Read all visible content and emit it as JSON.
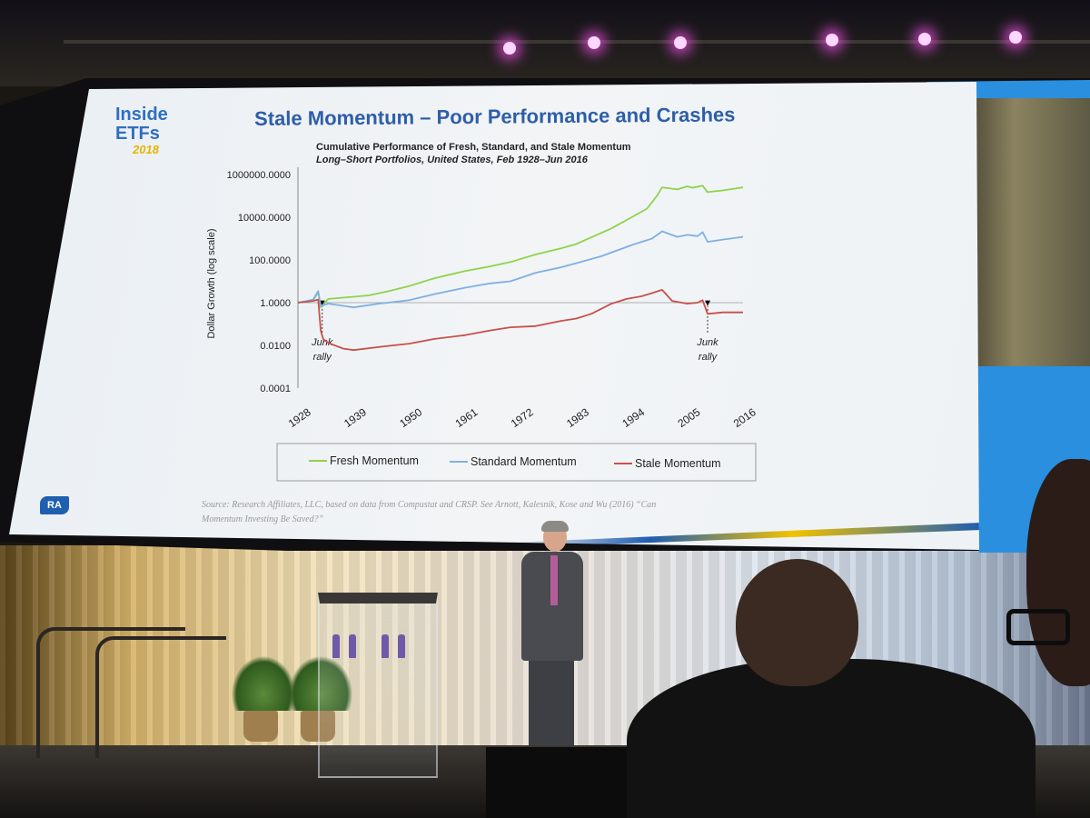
{
  "slide": {
    "logo_line1": "Inside",
    "logo_line2": "ETFs",
    "logo_year": "2018",
    "title": "Stale Momentum – Poor Performance and Crashes",
    "source_line1": "Source: Research Affiliates, LLC, based on data from Compustat and CRSP. See Arnott, Kalesnik, Kose and Wu (2016) “Can",
    "source_line2": "Momentum Investing Be Saved?”",
    "brand_mark": "RA"
  },
  "colors": {
    "title_blue": "#2e5ea9",
    "logo_blue": "#2e6fc3",
    "logo_gold": "#e7b400",
    "fresh": "#8ed34a",
    "standard": "#7fb0e3",
    "stale": "#c8504a",
    "slide_background": "#eef2f5"
  },
  "chart_data": {
    "type": "line",
    "title": "Cumulative Performance of Fresh, Standard, and Stale Momentum",
    "subtitle": "Long–Short Portfolios, United States, Feb 1928–Jun 2016",
    "xlabel": "",
    "ylabel": "Dollar Growth (log scale)",
    "y_scale": "log",
    "ylim": [
      0.0001,
      1000000
    ],
    "xlim": [
      1928,
      2016
    ],
    "x_ticks": [
      "1928",
      "1939",
      "1950",
      "1961",
      "1972",
      "1983",
      "1994",
      "2005",
      "2016"
    ],
    "y_ticks": [
      {
        "value": 1000000,
        "label": "1000000.0000"
      },
      {
        "value": 10000,
        "label": "10000.0000"
      },
      {
        "value": 100,
        "label": "100.0000"
      },
      {
        "value": 1,
        "label": "1.0000"
      },
      {
        "value": 0.01,
        "label": "0.0100"
      },
      {
        "value": 0.0001,
        "label": "0.0001"
      }
    ],
    "reference_line": 1,
    "grid": false,
    "legend_position": "bottom",
    "series": [
      {
        "name": "Fresh Momentum",
        "color": "#8ed34a",
        "points": [
          [
            1928,
            1.0
          ],
          [
            1931,
            1.3
          ],
          [
            1932,
            3.0
          ],
          [
            1932.5,
            0.6
          ],
          [
            1934,
            1.5
          ],
          [
            1938,
            1.8
          ],
          [
            1942,
            2.2
          ],
          [
            1946,
            3.5
          ],
          [
            1950,
            6
          ],
          [
            1955,
            14
          ],
          [
            1961,
            30
          ],
          [
            1966,
            50
          ],
          [
            1970,
            80
          ],
          [
            1975,
            180
          ],
          [
            1980,
            350
          ],
          [
            1983,
            550
          ],
          [
            1985,
            900
          ],
          [
            1990,
            3000
          ],
          [
            1994,
            10000
          ],
          [
            1997,
            25000
          ],
          [
            1999,
            100000
          ],
          [
            2000,
            250000
          ],
          [
            2003,
            200000
          ],
          [
            2005,
            280000
          ],
          [
            2006,
            240000
          ],
          [
            2008,
            300000
          ],
          [
            2009,
            150000
          ],
          [
            2012,
            180000
          ],
          [
            2016,
            250000
          ]
        ]
      },
      {
        "name": "Standard Momentum",
        "color": "#7fb0e3",
        "points": [
          [
            1928,
            1.0
          ],
          [
            1931,
            1.4
          ],
          [
            1932,
            3.5
          ],
          [
            1932.5,
            0.7
          ],
          [
            1934,
            0.9
          ],
          [
            1939,
            0.6
          ],
          [
            1944,
            0.9
          ],
          [
            1950,
            1.3
          ],
          [
            1955,
            2.5
          ],
          [
            1961,
            5
          ],
          [
            1966,
            8
          ],
          [
            1970,
            10
          ],
          [
            1975,
            25
          ],
          [
            1980,
            45
          ],
          [
            1983,
            70
          ],
          [
            1988,
            150
          ],
          [
            1994,
            500
          ],
          [
            1998,
            1000
          ],
          [
            2000,
            2200
          ],
          [
            2003,
            1200
          ],
          [
            2005,
            1500
          ],
          [
            2007,
            1300
          ],
          [
            2008,
            2000
          ],
          [
            2009,
            700
          ],
          [
            2012,
            900
          ],
          [
            2016,
            1200
          ]
        ]
      },
      {
        "name": "Stale Momentum",
        "color": "#c8504a",
        "points": [
          [
            1928,
            1.0
          ],
          [
            1931,
            1.2
          ],
          [
            1932,
            1.4
          ],
          [
            1932.5,
            0.05
          ],
          [
            1933,
            0.02
          ],
          [
            1934,
            0.013
          ],
          [
            1937,
            0.007
          ],
          [
            1939,
            0.006
          ],
          [
            1945,
            0.009
          ],
          [
            1950,
            0.012
          ],
          [
            1955,
            0.02
          ],
          [
            1961,
            0.03
          ],
          [
            1966,
            0.05
          ],
          [
            1970,
            0.07
          ],
          [
            1975,
            0.08
          ],
          [
            1980,
            0.14
          ],
          [
            1983,
            0.18
          ],
          [
            1986,
            0.3
          ],
          [
            1990,
            0.9
          ],
          [
            1993,
            1.5
          ],
          [
            1996,
            2.0
          ],
          [
            1998,
            2.8
          ],
          [
            2000,
            4
          ],
          [
            2002,
            1.2
          ],
          [
            2005,
            0.9
          ],
          [
            2007,
            1.0
          ],
          [
            2008,
            1.3
          ],
          [
            2009,
            0.3
          ],
          [
            2012,
            0.35
          ],
          [
            2016,
            0.35
          ]
        ]
      }
    ],
    "annotations": [
      {
        "x": 1932.8,
        "text": [
          "Junk",
          "rally"
        ]
      },
      {
        "x": 2009,
        "text": [
          "Junk",
          "rally"
        ]
      }
    ]
  }
}
